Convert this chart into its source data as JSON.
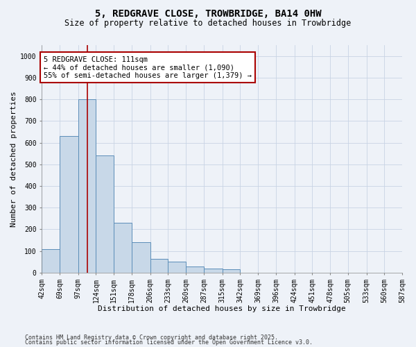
{
  "title": "5, REDGRAVE CLOSE, TROWBRIDGE, BA14 0HW",
  "subtitle": "Size of property relative to detached houses in Trowbridge",
  "xlabel": "Distribution of detached houses by size in Trowbridge",
  "ylabel": "Number of detached properties",
  "bar_edges": [
    42,
    69,
    97,
    124,
    151,
    178,
    206,
    233,
    260,
    287,
    315,
    342,
    369,
    396,
    424,
    451,
    478,
    505,
    533,
    560,
    587
  ],
  "bar_heights": [
    110,
    630,
    800,
    540,
    230,
    140,
    65,
    50,
    30,
    20,
    15,
    0,
    0,
    0,
    0,
    0,
    0,
    0,
    0,
    0
  ],
  "bar_color": "#c8d8e8",
  "bar_edge_color": "#5b8db8",
  "grid_color": "#c8d4e4",
  "background_color": "#eef2f8",
  "vline_x": 111,
  "vline_color": "#aa0000",
  "annotation_line1": "5 REDGRAVE CLOSE: 111sqm",
  "annotation_line2": "← 44% of detached houses are smaller (1,090)",
  "annotation_line3": "55% of semi-detached houses are larger (1,379) →",
  "annotation_box_color": "#aa0000",
  "annotation_bg": "#ffffff",
  "ylim": [
    0,
    1050
  ],
  "yticks": [
    0,
    100,
    200,
    300,
    400,
    500,
    600,
    700,
    800,
    900,
    1000
  ],
  "footer1": "Contains HM Land Registry data © Crown copyright and database right 2025.",
  "footer2": "Contains public sector information licensed under the Open Government Licence v3.0.",
  "title_fontsize": 10,
  "subtitle_fontsize": 8.5,
  "tick_fontsize": 7,
  "label_fontsize": 8,
  "annotation_fontsize": 7.5
}
